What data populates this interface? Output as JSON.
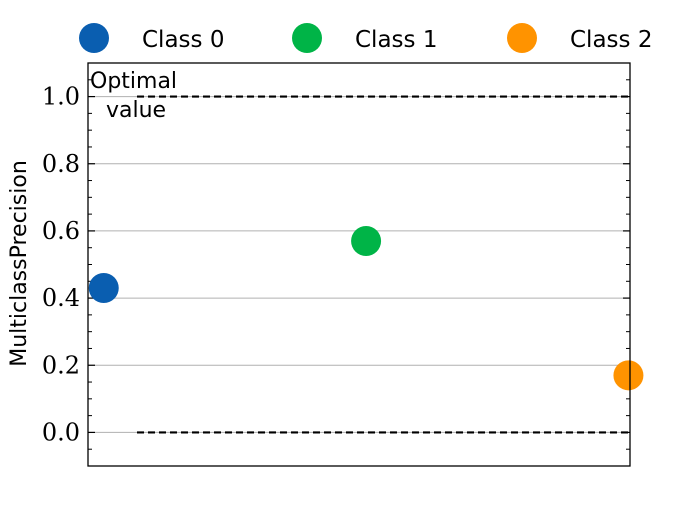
{
  "chart_data": {
    "type": "scatter",
    "title": "",
    "xlabel": "",
    "ylabel": "MulticlassPrecision",
    "ylim": [
      -0.1,
      1.1
    ],
    "yticks": [
      "0.0",
      "0.2",
      "0.4",
      "0.6",
      "0.8",
      "1.0"
    ],
    "grid": "horizontal",
    "legend_placement": "top (outside, above plot)",
    "series": [
      {
        "name": "Class 0",
        "x": [
          0
        ],
        "values": [
          0.43
        ],
        "color": "#0a5eb0"
      },
      {
        "name": "Class 1",
        "x": [
          1
        ],
        "values": [
          0.57
        ],
        "color": "#00b447"
      },
      {
        "name": "Class 2",
        "x": [
          2
        ],
        "values": [
          0.17
        ],
        "color": "#ff9300"
      }
    ],
    "reference_lines": [
      {
        "y": 1.0,
        "style": "dashed",
        "color": "#000000"
      },
      {
        "y": 0.0,
        "style": "dashed",
        "color": "#000000"
      }
    ],
    "annotations": [
      {
        "text_lines": [
          "Optimal",
          "value"
        ]
      }
    ]
  }
}
